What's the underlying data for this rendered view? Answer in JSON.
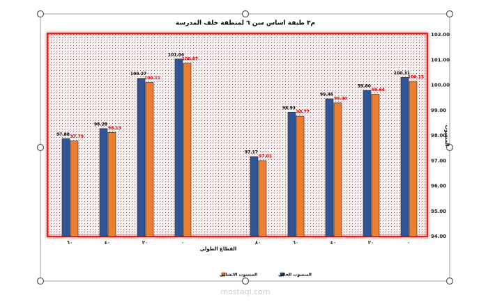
{
  "chart_data": {
    "type": "bar",
    "title": "م٣ طبقة اساس سن ٦ لمنطقة خلف المدرسة",
    "x_label": "القطاع الطولي",
    "y_label": "المنسوب",
    "categories": [
      "٦٠",
      "٤٠",
      "٢٠",
      "٠",
      null,
      "٨٠",
      "٦٠",
      "٤٠",
      "٢٠",
      "٠"
    ],
    "series": [
      {
        "name": "المنسوب الحالي",
        "color": "#2f5597",
        "values": [
          97.88,
          98.28,
          100.27,
          101.04,
          null,
          97.17,
          98.93,
          99.46,
          99.8,
          100.31
        ],
        "value_labels": [
          "97.88",
          "98.28",
          "100.27",
          "101.04",
          null,
          "97.17",
          "98.93",
          "99.46",
          "99.80",
          "100.31"
        ],
        "label_color": "#000000"
      },
      {
        "name": "المنسوب الانشائي",
        "color": "#ed7d31",
        "values": [
          97.79,
          98.13,
          100.11,
          100.87,
          null,
          97.01,
          98.77,
          99.3,
          99.64,
          100.15
        ],
        "value_labels": [
          "97.79",
          "98.13",
          "100.11",
          "100.87",
          null,
          "97.01",
          "98.77",
          "99.30",
          "99.64",
          "100.15"
        ],
        "label_color": "#e00000"
      }
    ],
    "ylim": [
      94,
      102
    ],
    "yticks": [
      {
        "value": 94,
        "label": "94.00"
      },
      {
        "value": 95,
        "label": "95.00"
      },
      {
        "value": 96,
        "label": "96.00"
      },
      {
        "value": 97,
        "label": "97.00"
      },
      {
        "value": 98,
        "label": "98.00"
      },
      {
        "value": 99,
        "label": "99.00"
      },
      {
        "value": 100,
        "label": "100.00"
      },
      {
        "value": 101,
        "label": "101.00"
      },
      {
        "value": 102,
        "label": "102.00"
      }
    ],
    "y_axis_side": "right",
    "legend": "bottom",
    "watermark": "mostaql.com"
  }
}
